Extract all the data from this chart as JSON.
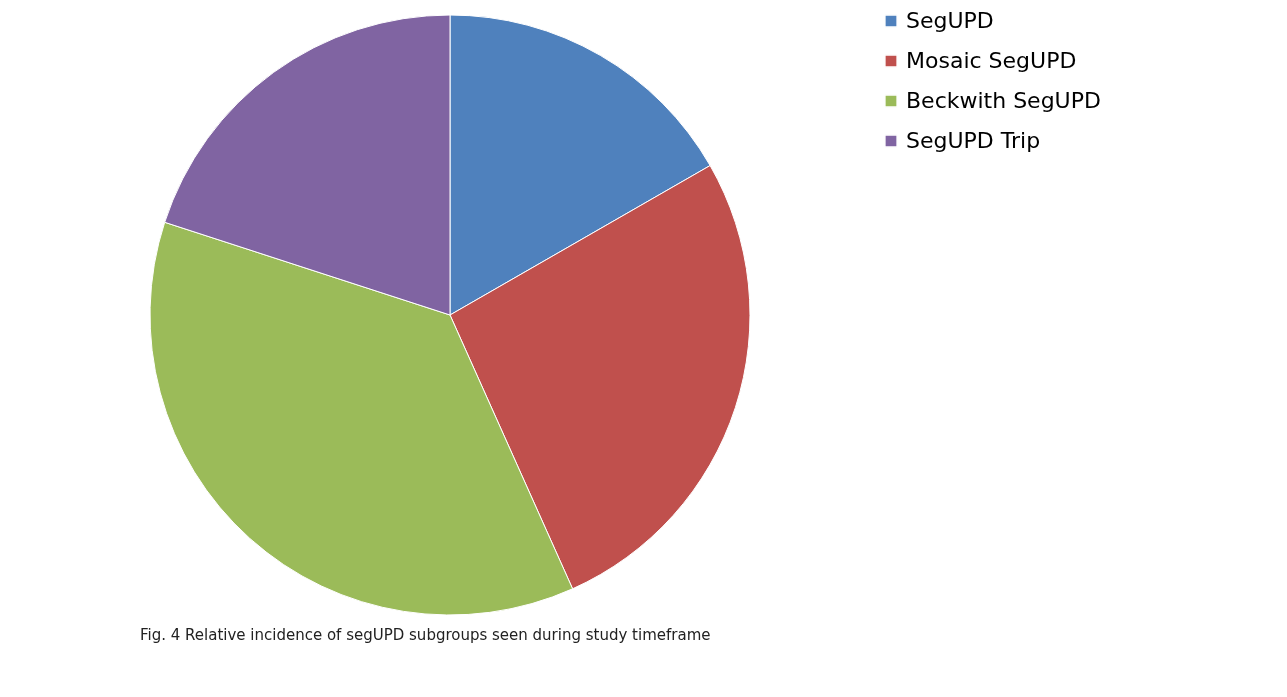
{
  "chart_data": {
    "type": "pie",
    "categories": [
      "SegUPD",
      "Mosaic SegUPD",
      "Beckwith SegUPD",
      "SegUPD Trip"
    ],
    "values": [
      16.7,
      26.6,
      36.7,
      20.0
    ],
    "colors": [
      "#4f81bd",
      "#c0504d",
      "#9bbb59",
      "#8064a2"
    ],
    "legend": "right",
    "annotations": [
      "Fig. 4  Relative incidence of segUPD subgroups seen during study timeframe"
    ]
  }
}
